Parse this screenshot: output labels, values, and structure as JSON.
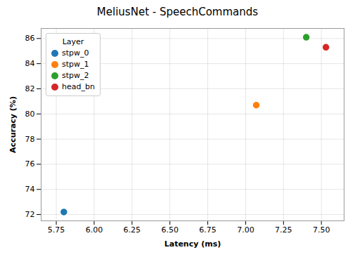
{
  "chart_data": {
    "type": "scatter",
    "title": "MeliusNet - SpeechCommands",
    "xlabel": "Latency (ms)",
    "ylabel": "Accuracy (%)",
    "legend_title": "Layer",
    "legend": "upper left",
    "grid": true,
    "marker": "circle",
    "series": [
      {
        "name": "stpw_0",
        "color": "#1f77b4",
        "x": [
          5.8
        ],
        "values": [
          72.2
        ]
      },
      {
        "name": "stpw_1",
        "color": "#ff7f0e",
        "x": [
          7.07
        ],
        "values": [
          80.7
        ]
      },
      {
        "name": "stpw_2",
        "color": "#2ca02c",
        "x": [
          7.4
        ],
        "values": [
          86.1
        ]
      },
      {
        "name": "head_bn",
        "color": "#d62728",
        "x": [
          7.53
        ],
        "values": [
          85.3
        ]
      }
    ],
    "xlim": [
      5.65,
      7.65
    ],
    "ylim": [
      71.5,
      86.8
    ],
    "xticks": [
      5.75,
      {
        "value": 6.0,
        "label": "6.00"
      },
      6.25,
      {
        "value": 6.5,
        "label": "6.50"
      },
      6.75,
      {
        "value": 7.0,
        "label": "7.00"
      },
      7.25,
      {
        "value": 7.5,
        "label": "7.50"
      }
    ],
    "yticks": [
      72,
      74,
      76,
      78,
      80,
      82,
      84,
      86
    ]
  }
}
